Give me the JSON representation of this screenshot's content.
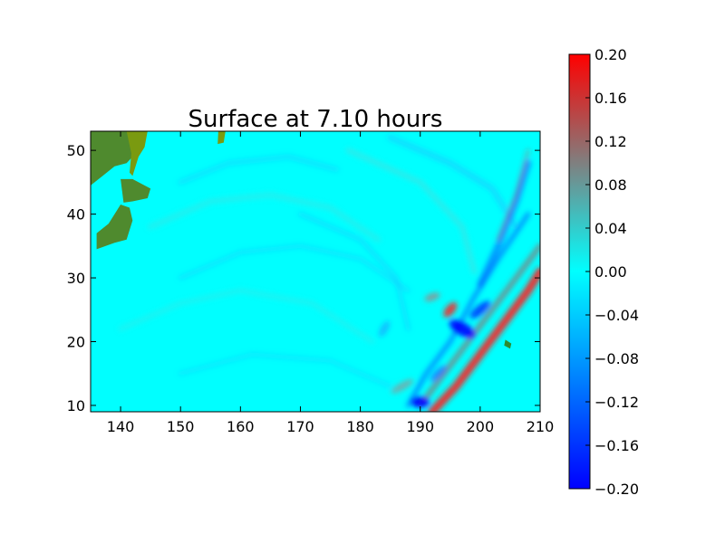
{
  "chart_data": {
    "type": "heatmap",
    "title": "Surface at 7.10 hours",
    "xlabel": "",
    "ylabel": "",
    "xlim": [
      135,
      210
    ],
    "ylim": [
      9,
      53
    ],
    "x_ticks": [
      "140",
      "150",
      "160",
      "170",
      "180",
      "190",
      "200",
      "210"
    ],
    "y_ticks": [
      "10",
      "20",
      "30",
      "40",
      "50"
    ],
    "colorbar": {
      "min": -0.2,
      "max": 0.2,
      "ticks": [
        "0.20",
        "0.16",
        "0.12",
        "0.08",
        "0.04",
        "0.00",
        "−0.04",
        "−0.08",
        "−0.12",
        "−0.16",
        "−0.20"
      ],
      "colors": [
        "#0000ff",
        "#00ffff",
        "#ff0000"
      ]
    },
    "colors": {
      "land": "#4f8a2e",
      "land_highlight": "#7a9a10",
      "background_field": "#00ffff"
    },
    "features": [
      {
        "name": "wave front (positive)",
        "from": [
          192,
          9
        ],
        "to": [
          210,
          32
        ],
        "value": 0.2
      },
      {
        "name": "trough cluster",
        "center": [
          197,
          22
        ],
        "value": -0.18
      },
      {
        "name": "crest cluster",
        "center": [
          195,
          24
        ],
        "value": 0.15
      }
    ]
  }
}
